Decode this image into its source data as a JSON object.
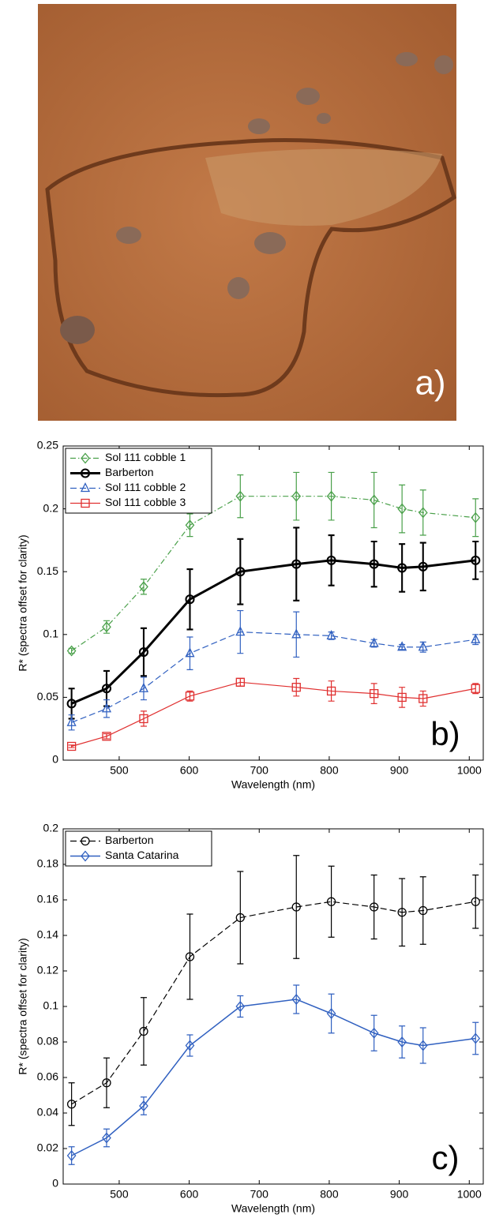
{
  "image": {
    "label": "a)"
  },
  "chart_data": [
    {
      "type": "line",
      "panel_label": "b)",
      "xlabel": "Wavelength (nm)",
      "ylabel": "R* (spectra offset for clarity)",
      "x": [
        432,
        482,
        535,
        601,
        673,
        753,
        803,
        864,
        904,
        934,
        1009
      ],
      "xlim": [
        420,
        1020
      ],
      "xticks": [
        500,
        600,
        700,
        800,
        900,
        1000
      ],
      "ylim": [
        0,
        0.25
      ],
      "yticks": [
        0,
        0.05,
        0.1,
        0.15,
        0.2,
        0.25
      ],
      "legend": "upper left",
      "series": [
        {
          "name": "Sol 111 cobble 1",
          "color": "#4aa04a",
          "marker": "diamond",
          "line_style": "dashdot",
          "line_width": 1.2,
          "values": [
            0.087,
            0.106,
            0.138,
            0.187,
            0.21,
            0.21,
            0.21,
            0.207,
            0.2,
            0.197,
            0.193
          ],
          "errors": [
            0.002,
            0.005,
            0.006,
            0.009,
            0.017,
            0.019,
            0.019,
            0.022,
            0.019,
            0.018,
            0.015
          ]
        },
        {
          "name": "Barberton",
          "color": "#000000",
          "marker": "circle",
          "line_style": "solid",
          "line_width": 3,
          "values": [
            0.045,
            0.057,
            0.086,
            0.128,
            0.15,
            0.156,
            0.159,
            0.156,
            0.153,
            0.154,
            0.159
          ],
          "errors": [
            0.012,
            0.014,
            0.019,
            0.024,
            0.026,
            0.029,
            0.02,
            0.018,
            0.019,
            0.019,
            0.015
          ]
        },
        {
          "name": "Sol 111 cobble 2",
          "color": "#3060c0",
          "marker": "triangle",
          "line_style": "dashed",
          "line_width": 1.2,
          "values": [
            0.03,
            0.041,
            0.057,
            0.085,
            0.102,
            0.1,
            0.099,
            0.093,
            0.09,
            0.09,
            0.096
          ],
          "errors": [
            0.006,
            0.007,
            0.009,
            0.013,
            0.017,
            0.018,
            0.003,
            0.003,
            0.002,
            0.004,
            0.004
          ]
        },
        {
          "name": "Sol 111 cobble 3",
          "color": "#e03030",
          "marker": "square",
          "line_style": "solid",
          "line_width": 1.2,
          "values": [
            0.011,
            0.019,
            0.033,
            0.051,
            0.062,
            0.058,
            0.055,
            0.053,
            0.05,
            0.049,
            0.057
          ],
          "errors": [
            0.001,
            0.002,
            0.006,
            0.004,
            0.003,
            0.007,
            0.008,
            0.008,
            0.008,
            0.006,
            0.004
          ]
        }
      ]
    },
    {
      "type": "line",
      "panel_label": "c)",
      "xlabel": "Wavelength (nm)",
      "ylabel": "R* (spectra offset for clarity)",
      "x": [
        432,
        482,
        535,
        601,
        673,
        753,
        803,
        864,
        904,
        934,
        1009
      ],
      "xlim": [
        420,
        1020
      ],
      "xticks": [
        500,
        600,
        700,
        800,
        900,
        1000
      ],
      "ylim": [
        0,
        0.2
      ],
      "yticks": [
        0,
        0.02,
        0.04,
        0.06,
        0.08,
        0.1,
        0.12,
        0.14,
        0.16,
        0.18,
        0.2
      ],
      "legend": "upper left",
      "series": [
        {
          "name": "Barberton",
          "color": "#000000",
          "marker": "circle",
          "line_style": "dashed",
          "line_width": 1.2,
          "values": [
            0.045,
            0.057,
            0.086,
            0.128,
            0.15,
            0.156,
            0.159,
            0.156,
            0.153,
            0.154,
            0.159
          ],
          "errors": [
            0.012,
            0.014,
            0.019,
            0.024,
            0.026,
            0.029,
            0.02,
            0.018,
            0.019,
            0.019,
            0.015
          ]
        },
        {
          "name": "Santa Catarina",
          "color": "#3060c0",
          "marker": "diamond",
          "line_style": "solid",
          "line_width": 1.5,
          "values": [
            0.016,
            0.026,
            0.044,
            0.078,
            0.1,
            0.104,
            0.096,
            0.085,
            0.08,
            0.078,
            0.082
          ],
          "errors": [
            0.005,
            0.005,
            0.005,
            0.006,
            0.006,
            0.008,
            0.011,
            0.01,
            0.009,
            0.01,
            0.009
          ]
        }
      ]
    }
  ]
}
